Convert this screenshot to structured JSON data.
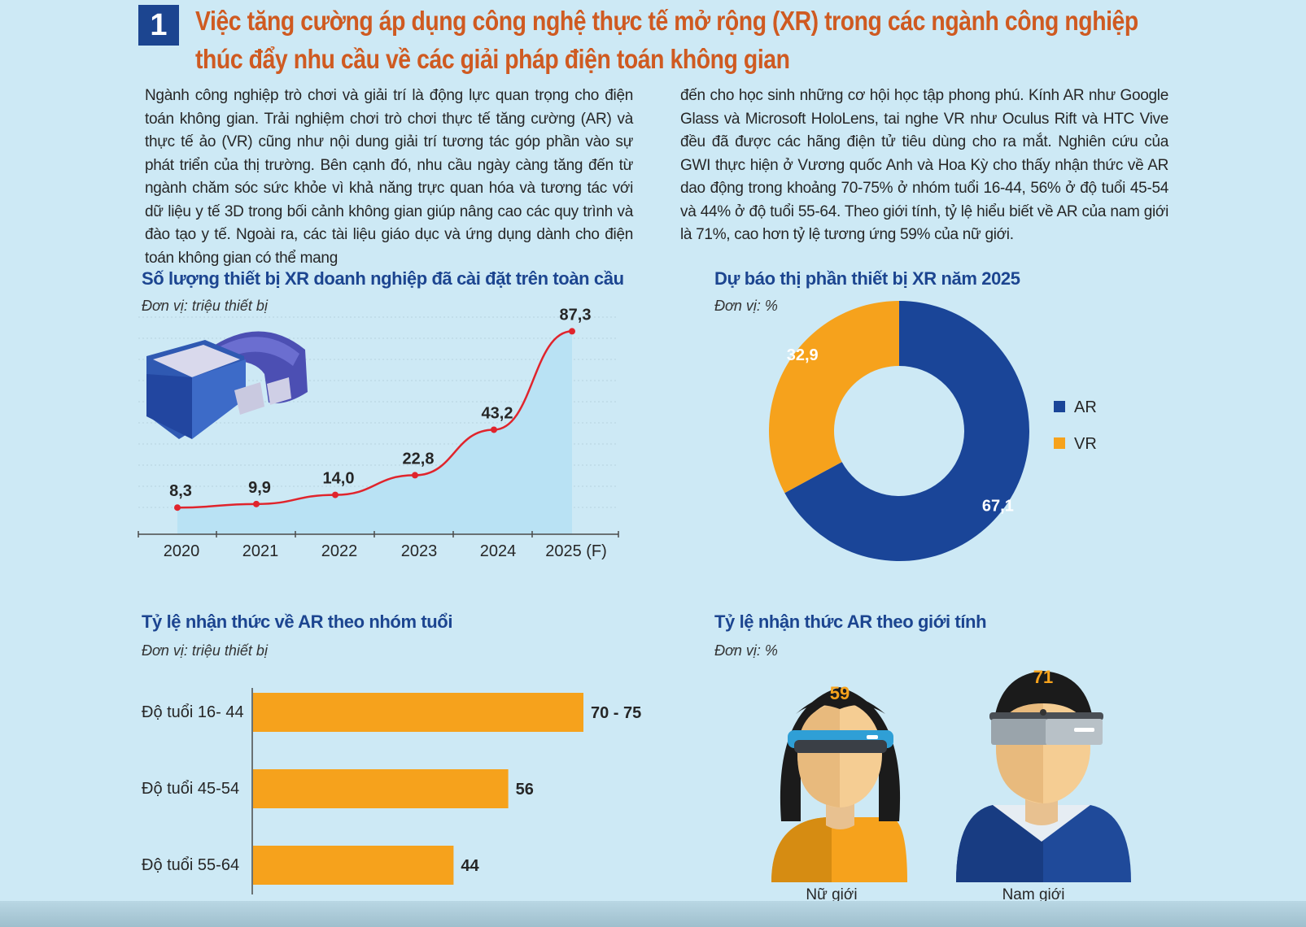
{
  "header": {
    "number": "1",
    "title_line1": "Việc tăng cường áp dụng công nghệ thực tế mở rộng (XR) trong các ngành công nghiệp",
    "title_line2": "thúc đẩy nhu cầu về các giải pháp điện toán không gian"
  },
  "body": {
    "col1": "Ngành công nghiệp trò chơi và giải trí là động lực quan trọng cho điện toán không gian. Trải nghiệm chơi trò chơi thực tế tăng cường (AR) và thực tế ảo (VR) cũng như nội dung giải trí tương tác góp phần vào sự phát triển của thị trường. Bên cạnh đó, nhu cầu ngày càng tăng đến từ ngành chăm sóc sức khỏe vì khả năng trực quan hóa và tương tác với dữ liệu y tế 3D trong bối cảnh không gian giúp nâng cao các quy trình và đào tạo y tế. Ngoài ra, các tài liệu giáo dục và ứng dụng dành cho điện toán không gian có thể mang",
    "col2": "đến cho học sinh những cơ hội học tập phong phú. Kính AR như Google Glass và Microsoft HoloLens, tai nghe VR như Oculus Rift và HTC Vive đều đã được các hãng điện tử tiêu dùng cho ra mắt. Nghiên cứu của GWI thực hiện ở Vương quốc Anh và Hoa Kỳ cho thấy nhận thức về AR dao động trong khoảng 70-75% ở nhóm tuổi 16-44, 56% ở độ tuổi 45-54 và 44% ở độ tuổi 55-64. Theo giới tính, tỷ lệ hiểu biết về AR của nam giới là 71%, cao hơn tỷ lệ tương ứng 59% của nữ giới."
  },
  "colors": {
    "line": "#e0242c",
    "area": "#b9e2f4",
    "ar": "#1a4598",
    "vr": "#f6a21c",
    "bar": "#f6a21c",
    "title_orange": "#cf5a21",
    "title_blue": "#1c4590"
  },
  "chart_data": [
    {
      "type": "area",
      "title": "Số lượng thiết bị XR doanh nghiệp đã cài đặt trên toàn cầu",
      "unit": "Đơn vị: triệu thiết bị",
      "categories": [
        "2020",
        "2021",
        "2022",
        "2023",
        "2024",
        "2025 (F)"
      ],
      "values": [
        8.3,
        9.9,
        14.0,
        22.8,
        43.2,
        87.3
      ],
      "labels": [
        "8,3",
        "9,9",
        "14,0",
        "22,8",
        "43,2",
        "87,3"
      ],
      "ylim": [
        0,
        90
      ],
      "grid": true
    },
    {
      "type": "pie",
      "title": "Dự báo thị phần thiết bị XR năm 2025",
      "unit": "Đơn vị: %",
      "slices": [
        {
          "name": "AR",
          "value": 67.1,
          "label": "67,1"
        },
        {
          "name": "VR",
          "value": 32.9,
          "label": "32,9"
        }
      ],
      "legend": "right"
    },
    {
      "type": "bar",
      "title": "Tỷ lệ nhận thức về AR theo nhóm tuổi",
      "unit": "Đơn vị: triệu thiết bị",
      "categories": [
        "Độ tuổi 16- 44",
        "Độ tuổi 45-54",
        "Độ tuổi 55-64"
      ],
      "values": [
        72.5,
        56,
        44
      ],
      "labels": [
        "70 - 75",
        "56",
        "44"
      ],
      "orientation": "horizontal"
    },
    {
      "type": "bar",
      "title": "Tỷ lệ nhận thức AR theo giới tính",
      "unit": "Đơn vị: %",
      "categories": [
        "Nữ giới",
        "Nam giới"
      ],
      "values": [
        59,
        71
      ],
      "labels": [
        "59",
        "71"
      ]
    }
  ]
}
